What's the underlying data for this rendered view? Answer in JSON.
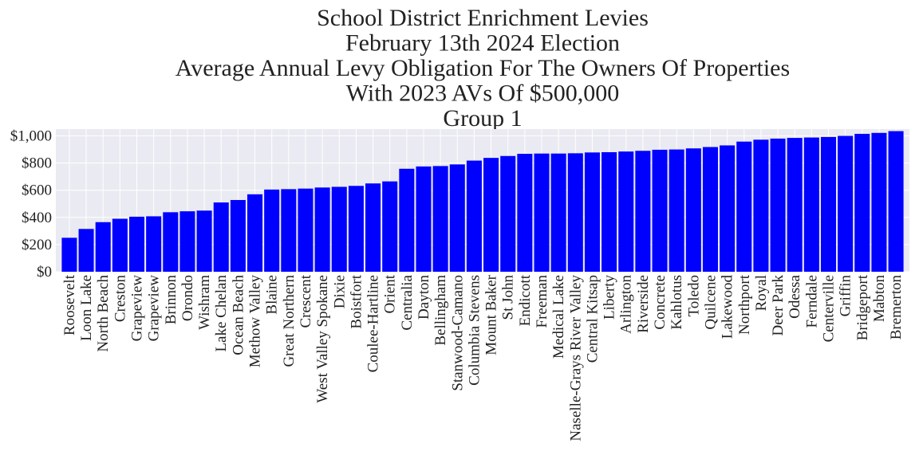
{
  "chart_data": {
    "type": "bar",
    "title_lines": [
      "School District Enrichment Levies",
      "February 13th 2024 Election",
      "Average Annual Levy Obligation For The Owners Of Properties",
      "With 2023 AVs Of $500,000",
      "Group 1"
    ],
    "xlabel": "",
    "ylabel": "",
    "ylim": [
      0,
      1050
    ],
    "yticks": [
      0,
      200,
      400,
      600,
      800,
      1000
    ],
    "ytick_labels": [
      "$0",
      "$200",
      "$400",
      "$600",
      "$800",
      "$1,000"
    ],
    "grid": true,
    "bar_color": "#0000ff",
    "plot_background": "#eaeaf2",
    "categories": [
      "Roosevelt",
      "Loon Lake",
      "North Beach",
      "Creston",
      "Grapeview",
      "Grapeview",
      "Brinnon",
      "Orondo",
      "Wishram",
      "Lake Chelan",
      "Ocean Beach",
      "Methow Valley",
      "Blaine",
      "Great Northern",
      "Crescent",
      "West Valley Spokane",
      "Dixie",
      "Boistfort",
      "Coulee-Hartline",
      "Orient",
      "Centralia",
      "Dayton",
      "Bellingham",
      "Stanwood-Camano",
      "Columbia Stevens",
      "Mount Baker",
      "St John",
      "Endicott",
      "Freeman",
      "Medical Lake",
      "Naselle-Grays River Valley",
      "Central Kitsap",
      "Liberty",
      "Arlington",
      "Riverside",
      "Concrete",
      "Kahlotus",
      "Toledo",
      "Quilcene",
      "Lakewood",
      "Northport",
      "Royal",
      "Deer Park",
      "Odessa",
      "Ferndale",
      "Centerville",
      "Griffin",
      "Bridgeport",
      "Mabton",
      "Bremerton"
    ],
    "values": [
      250,
      315,
      365,
      390,
      405,
      408,
      438,
      445,
      450,
      510,
      528,
      570,
      605,
      608,
      612,
      620,
      625,
      632,
      650,
      665,
      758,
      775,
      778,
      790,
      818,
      838,
      852,
      868,
      870,
      870,
      872,
      878,
      880,
      885,
      890,
      898,
      900,
      908,
      918,
      930,
      958,
      972,
      980,
      985,
      988,
      992,
      1000,
      1015,
      1022,
      1035
    ]
  }
}
